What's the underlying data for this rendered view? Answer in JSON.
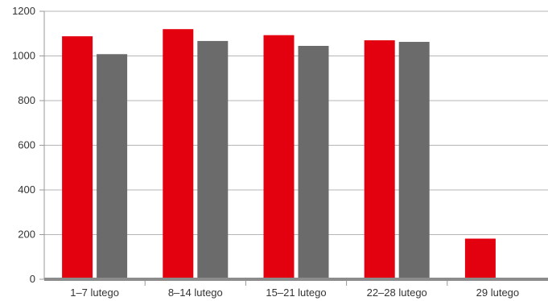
{
  "chart_data": {
    "type": "bar",
    "title": "",
    "xlabel": "",
    "ylabel": "",
    "categories": [
      "1–7 lutego",
      "8–14 lutego",
      "15–21 lutego",
      "22–28 lutego",
      "29 lutego"
    ],
    "series": [
      {
        "color": "#e3000f",
        "values": [
          1088,
          1120,
          1093,
          1070,
          182
        ]
      },
      {
        "color": "#6b6b6b",
        "values": [
          1008,
          1067,
          1045,
          1063,
          3
        ]
      }
    ],
    "ylim": [
      0,
      1200
    ],
    "yticks": [
      "0",
      "200",
      "400",
      "600",
      "800",
      "1000",
      "1200"
    ],
    "grid": true,
    "legend": "none"
  }
}
